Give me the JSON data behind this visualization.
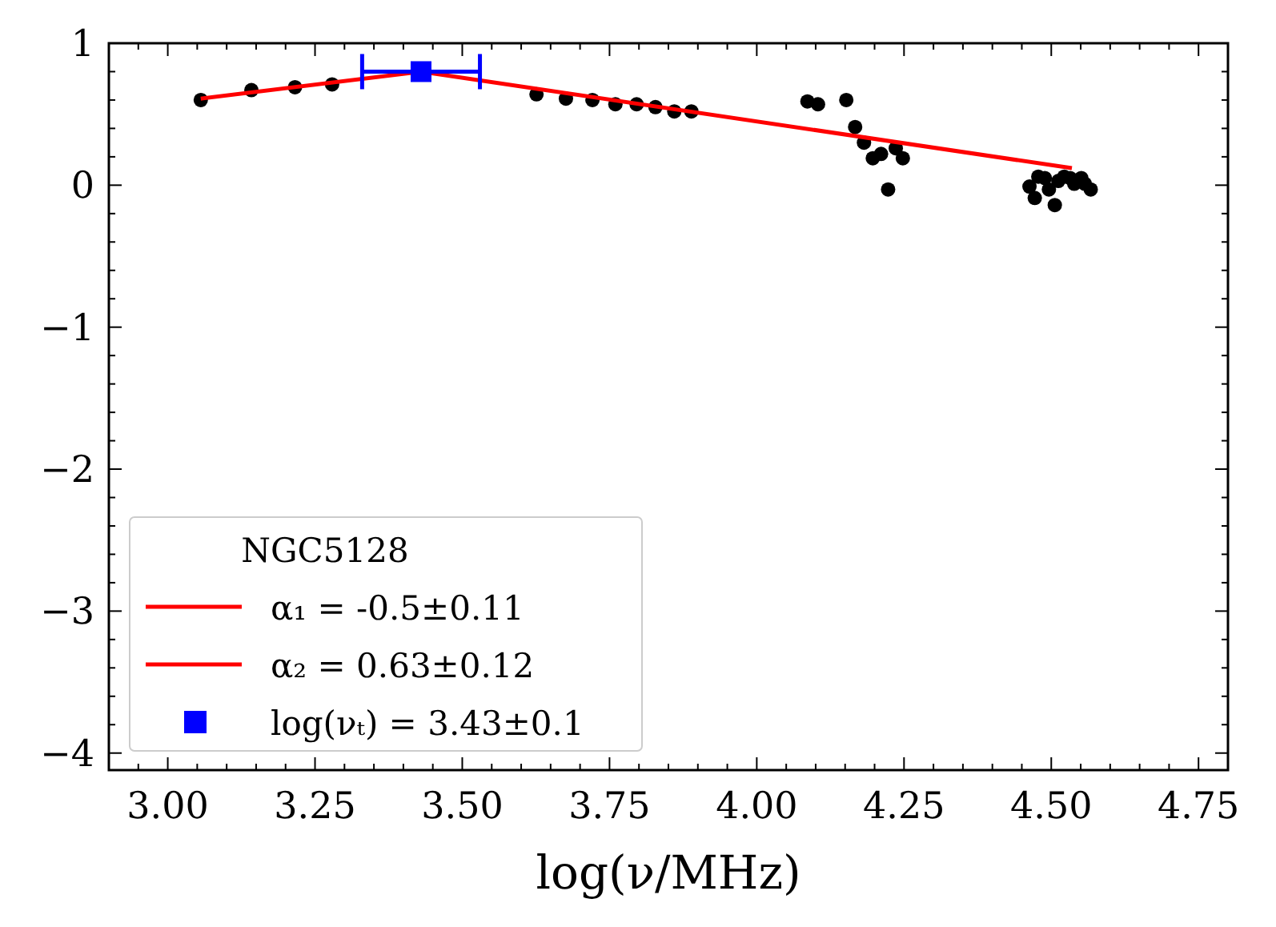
{
  "chart_data": {
    "type": "scatter",
    "xlabel": "log(ν/MHz)",
    "legend_title": "NGC5128",
    "legend": "bottom left",
    "grid": false,
    "xlim": [
      2.9,
      4.8
    ],
    "ylim": [
      -4.12,
      1.0
    ],
    "xticks": [
      {
        "value": 3,
        "label": "3.00"
      },
      {
        "value": 3.25,
        "label": "3.25"
      },
      {
        "value": 3.5,
        "label": "3.50"
      },
      {
        "value": 3.75,
        "label": "3.75"
      },
      {
        "value": 4,
        "label": "4.00"
      },
      {
        "value": 4.25,
        "label": "4.25"
      },
      {
        "value": 4.5,
        "label": "4.50"
      },
      {
        "value": 4.75,
        "label": "4.75"
      }
    ],
    "yticks": [
      {
        "value": -4,
        "label": "−4"
      },
      {
        "value": -3,
        "label": "−3"
      },
      {
        "value": -2,
        "label": "−2"
      },
      {
        "value": -1,
        "label": "−1"
      },
      0,
      1
    ],
    "series": [
      {
        "marker": "circle",
        "color": "#000000",
        "x": [
          3.056,
          3.142,
          3.216,
          3.279,
          3.626,
          3.676,
          3.721,
          3.76,
          3.796,
          3.828,
          3.86,
          3.889,
          4.086,
          4.104,
          4.152,
          4.167,
          4.182,
          4.197,
          4.211,
          4.223,
          4.236,
          4.248,
          4.463,
          4.472,
          4.478,
          4.489,
          4.496,
          4.506,
          4.512,
          4.522,
          4.532,
          4.539,
          4.551,
          4.557,
          4.567
        ],
        "values": [
          0.6,
          0.67,
          0.69,
          0.71,
          0.64,
          0.61,
          0.6,
          0.57,
          0.57,
          0.55,
          0.52,
          0.52,
          0.59,
          0.57,
          0.6,
          0.41,
          0.3,
          0.19,
          0.22,
          -0.03,
          0.26,
          0.19,
          -0.01,
          -0.09,
          0.06,
          0.05,
          -0.03,
          -0.14,
          0.03,
          0.06,
          0.05,
          0.01,
          0.05,
          0.01,
          -0.03
        ]
      },
      {
        "type": "line",
        "name": "α₁ =  -0.5±0.11",
        "color": "#ff0000",
        "line_style": "solid",
        "x": [
          3.43,
          4.535
        ],
        "values": [
          0.8,
          0.12
        ]
      },
      {
        "type": "line",
        "name": "α₂ =  0.63±0.12",
        "color": "#ff0000",
        "line_style": "solid",
        "x": [
          3.056,
          3.43
        ],
        "values": [
          0.61,
          0.8
        ]
      },
      {
        "name": "log(νₜ) = 3.43±0.1",
        "marker": "square",
        "color": "#0000ff",
        "x": [
          3.43
        ],
        "values": [
          0.8
        ],
        "xerrors": [
          0.1
        ]
      }
    ]
  }
}
